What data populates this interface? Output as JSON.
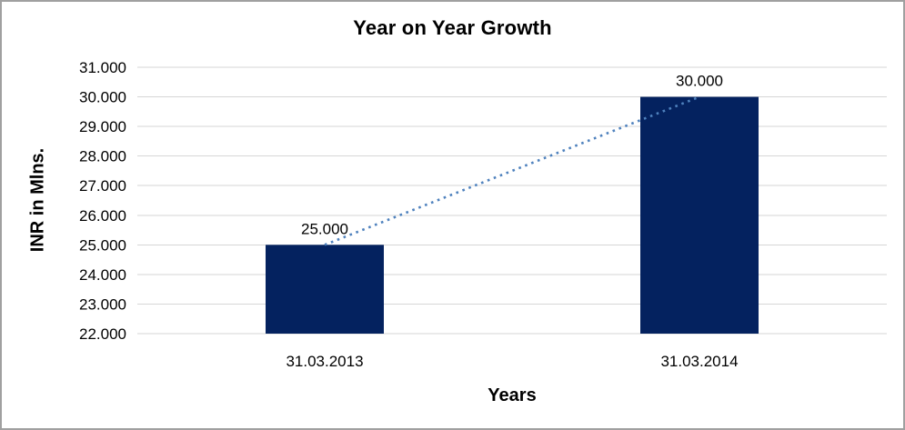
{
  "window": {
    "border_color": "#A0A0A0",
    "background": "#FFFFFF"
  },
  "chart_data": {
    "type": "bar",
    "title": "Year on Year Growth",
    "categories": [
      "31.03.2013",
      "31.03.2014"
    ],
    "values": [
      25000,
      30000
    ],
    "value_labels": [
      "25.000",
      "30.000"
    ],
    "xlabel": "Years",
    "ylabel": "INR in Mlns.",
    "ylim": [
      22000,
      31000
    ],
    "ytick_step": 1000,
    "ytick_labels": [
      "31.000",
      "30.000",
      "29.000",
      "28.000",
      "27.000",
      "26.000",
      "25.000",
      "24.000",
      "23.000",
      "22.000"
    ],
    "grid": true,
    "legend": false,
    "trendline": {
      "style": "dotted",
      "from_category": "31.03.2013",
      "to_category": "31.03.2014"
    },
    "colors": {
      "bar": "#04225F",
      "trendline": "#4E81BD",
      "gridline": "#D6D6D6",
      "text": "#000000"
    }
  }
}
